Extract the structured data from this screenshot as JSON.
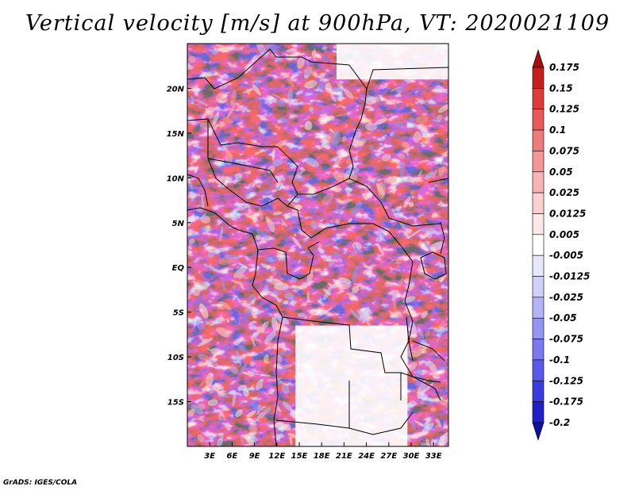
{
  "title": "Vertical velocity [m/s] at 900hPa, VT: 2020021109",
  "footer": "GrADS: IGES/COLA",
  "map": {
    "lon_range": [
      0,
      35
    ],
    "lat_range": [
      -20,
      25
    ],
    "lat_ticks": [
      {
        "value": 20,
        "label": "20N"
      },
      {
        "value": 15,
        "label": "15N"
      },
      {
        "value": 10,
        "label": "10N"
      },
      {
        "value": 5,
        "label": "5N"
      },
      {
        "value": 0,
        "label": "EQ"
      },
      {
        "value": -5,
        "label": "5S"
      },
      {
        "value": -10,
        "label": "10S"
      },
      {
        "value": -15,
        "label": "15S"
      }
    ],
    "lon_ticks": [
      {
        "value": 3,
        "label": "3E"
      },
      {
        "value": 6,
        "label": "6E"
      },
      {
        "value": 9,
        "label": "9E"
      },
      {
        "value": 12,
        "label": "12E"
      },
      {
        "value": 15,
        "label": "15E"
      },
      {
        "value": 18,
        "label": "18E"
      },
      {
        "value": 21,
        "label": "21E"
      },
      {
        "value": 24,
        "label": "24E"
      },
      {
        "value": 27,
        "label": "27E"
      },
      {
        "value": 30,
        "label": "30E"
      },
      {
        "value": 33,
        "label": "33E"
      }
    ],
    "no_data_regions": [
      {
        "name": "angola-zambia-interior",
        "lon": [
          14.5,
          29.5
        ],
        "lat": [
          -20,
          -6.5
        ]
      },
      {
        "name": "libya-egypt-south",
        "lon": [
          20,
          35
        ],
        "lat": [
          21,
          25
        ]
      }
    ]
  },
  "colorbar": {
    "levels": [
      "0.175",
      "0.15",
      "0.125",
      "0.1",
      "0.075",
      "0.05",
      "0.025",
      "0.0125",
      "0.005",
      "-0.005",
      "-0.0125",
      "-0.025",
      "-0.05",
      "-0.075",
      "-0.1",
      "-0.125",
      "-0.175",
      "-0.2"
    ],
    "colors": [
      "#a01010",
      "#c42020",
      "#dc3c3c",
      "#e65a5a",
      "#ee7a7a",
      "#f29696",
      "#f6b4b4",
      "#fad0d0",
      "#fde8e8",
      "#ffffff",
      "#e8e8fd",
      "#d0d0fa",
      "#b4b4f6",
      "#9696f2",
      "#7a7aee",
      "#5a5ae6",
      "#3c3cdc",
      "#2020c4",
      "#1010a0"
    ]
  }
}
